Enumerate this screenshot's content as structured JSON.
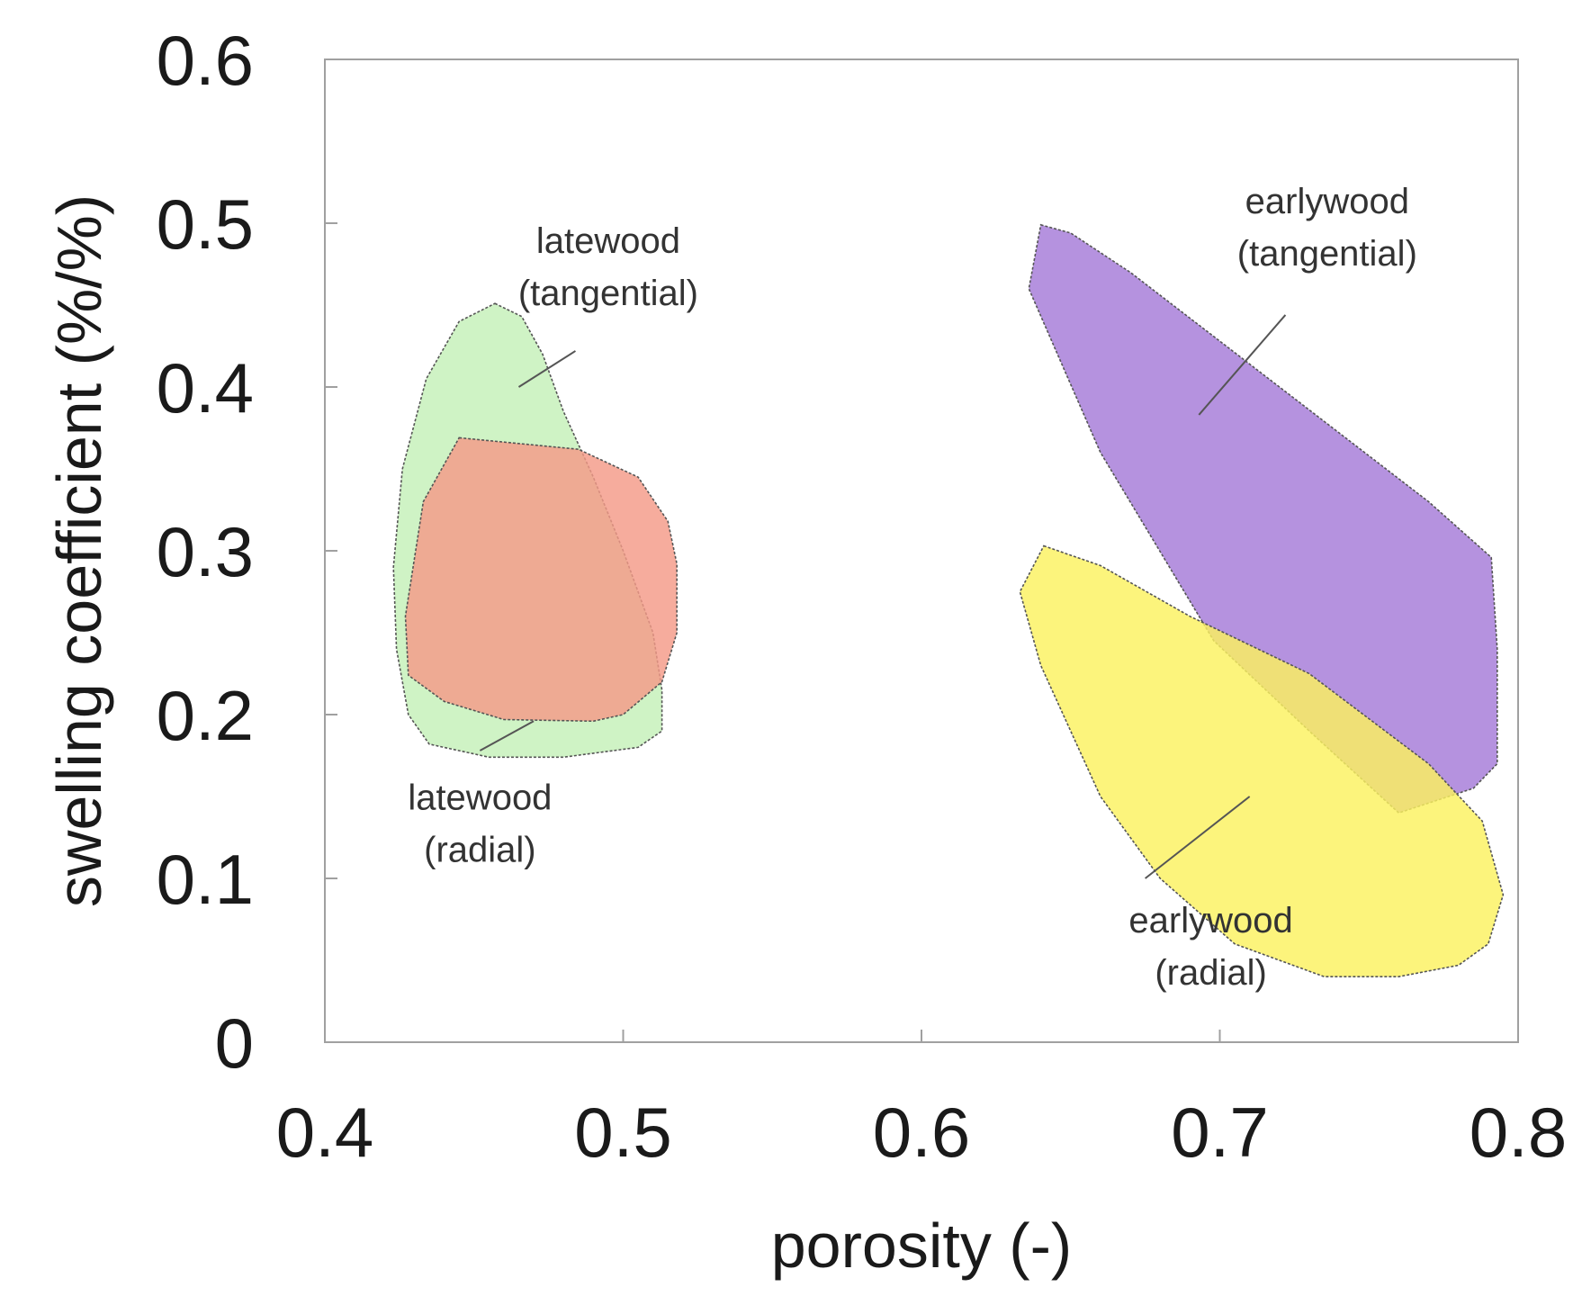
{
  "chart_data": {
    "type": "scatter",
    "subtype": "region-envelopes",
    "title": "",
    "xlabel": "porosity (-)",
    "ylabel": "swelling coefficient (%/%)",
    "xlim": [
      0.4,
      0.8
    ],
    "ylim": [
      0,
      0.6
    ],
    "xticks": [
      0.4,
      0.5,
      0.6,
      0.7,
      0.8
    ],
    "xtick_labels": [
      "0.4",
      "0.5",
      "0.6",
      "0.7",
      "0.8"
    ],
    "yticks": [
      0,
      0.1,
      0.2,
      0.3,
      0.4,
      0.5,
      0.6
    ],
    "ytick_labels": [
      "0",
      "0.1",
      "0.2",
      "0.3",
      "0.4",
      "0.5",
      "0.6"
    ],
    "grid": false,
    "legend": "none",
    "series": [
      {
        "name": "latewood (tangential)",
        "label_lines": [
          "latewood",
          "(tangential)"
        ],
        "color": "#c4f0b8",
        "polygon": [
          [
            0.457,
            0.451
          ],
          [
            0.466,
            0.443
          ],
          [
            0.473,
            0.42
          ],
          [
            0.48,
            0.385
          ],
          [
            0.49,
            0.345
          ],
          [
            0.5,
            0.3
          ],
          [
            0.51,
            0.25
          ],
          [
            0.513,
            0.215
          ],
          [
            0.513,
            0.19
          ],
          [
            0.505,
            0.18
          ],
          [
            0.48,
            0.174
          ],
          [
            0.455,
            0.174
          ],
          [
            0.435,
            0.182
          ],
          [
            0.428,
            0.2
          ],
          [
            0.424,
            0.24
          ],
          [
            0.423,
            0.29
          ],
          [
            0.426,
            0.35
          ],
          [
            0.434,
            0.405
          ],
          [
            0.445,
            0.44
          ]
        ]
      },
      {
        "name": "latewood (radial)",
        "label_lines": [
          "latewood",
          "(radial)"
        ],
        "color": "#f49a88",
        "polygon": [
          [
            0.445,
            0.369
          ],
          [
            0.485,
            0.362
          ],
          [
            0.505,
            0.345
          ],
          [
            0.515,
            0.318
          ],
          [
            0.518,
            0.292
          ],
          [
            0.518,
            0.25
          ],
          [
            0.513,
            0.22
          ],
          [
            0.5,
            0.2
          ],
          [
            0.49,
            0.196
          ],
          [
            0.46,
            0.197
          ],
          [
            0.44,
            0.208
          ],
          [
            0.428,
            0.224
          ],
          [
            0.427,
            0.26
          ],
          [
            0.433,
            0.33
          ]
        ]
      },
      {
        "name": "earlywood (tangential)",
        "label_lines": [
          "earlywood",
          "(tangential)"
        ],
        "color": "#a57ad8",
        "polygon": [
          [
            0.64,
            0.499
          ],
          [
            0.65,
            0.494
          ],
          [
            0.67,
            0.47
          ],
          [
            0.72,
            0.4
          ],
          [
            0.77,
            0.33
          ],
          [
            0.791,
            0.296
          ],
          [
            0.793,
            0.24
          ],
          [
            0.793,
            0.17
          ],
          [
            0.785,
            0.155
          ],
          [
            0.76,
            0.14
          ],
          [
            0.73,
            0.19
          ],
          [
            0.698,
            0.245
          ],
          [
            0.66,
            0.36
          ],
          [
            0.636,
            0.46
          ]
        ]
      },
      {
        "name": "earlywood (radial)",
        "label_lines": [
          "earlywood",
          "(radial)"
        ],
        "color": "#fbf15f",
        "polygon": [
          [
            0.641,
            0.303
          ],
          [
            0.66,
            0.291
          ],
          [
            0.69,
            0.26
          ],
          [
            0.73,
            0.225
          ],
          [
            0.77,
            0.17
          ],
          [
            0.788,
            0.135
          ],
          [
            0.795,
            0.09
          ],
          [
            0.79,
            0.06
          ],
          [
            0.78,
            0.047
          ],
          [
            0.76,
            0.04
          ],
          [
            0.735,
            0.04
          ],
          [
            0.705,
            0.06
          ],
          [
            0.68,
            0.1
          ],
          [
            0.66,
            0.15
          ],
          [
            0.64,
            0.23
          ],
          [
            0.633,
            0.275
          ]
        ]
      }
    ],
    "annotations": [
      {
        "label_lines": [
          "latewood",
          "(tangential)"
        ],
        "text_at": [
          0.495,
          0.482
        ],
        "leader_from": [
          0.484,
          0.422
        ],
        "leader_to": [
          0.465,
          0.4
        ]
      },
      {
        "label_lines": [
          "latewood",
          "(radial)"
        ],
        "text_at": [
          0.452,
          0.142
        ],
        "leader_from": [
          0.452,
          0.178
        ],
        "leader_to": [
          0.47,
          0.196
        ]
      },
      {
        "label_lines": [
          "earlywood",
          "(tangential)"
        ],
        "text_at": [
          0.736,
          0.506
        ],
        "leader_from": [
          0.722,
          0.444
        ],
        "leader_to": [
          0.693,
          0.383
        ]
      },
      {
        "label_lines": [
          "earlywood",
          "(radial)"
        ],
        "text_at": [
          0.697,
          0.067
        ],
        "leader_from": [
          0.675,
          0.1
        ],
        "leader_to": [
          0.71,
          0.15
        ]
      }
    ]
  }
}
